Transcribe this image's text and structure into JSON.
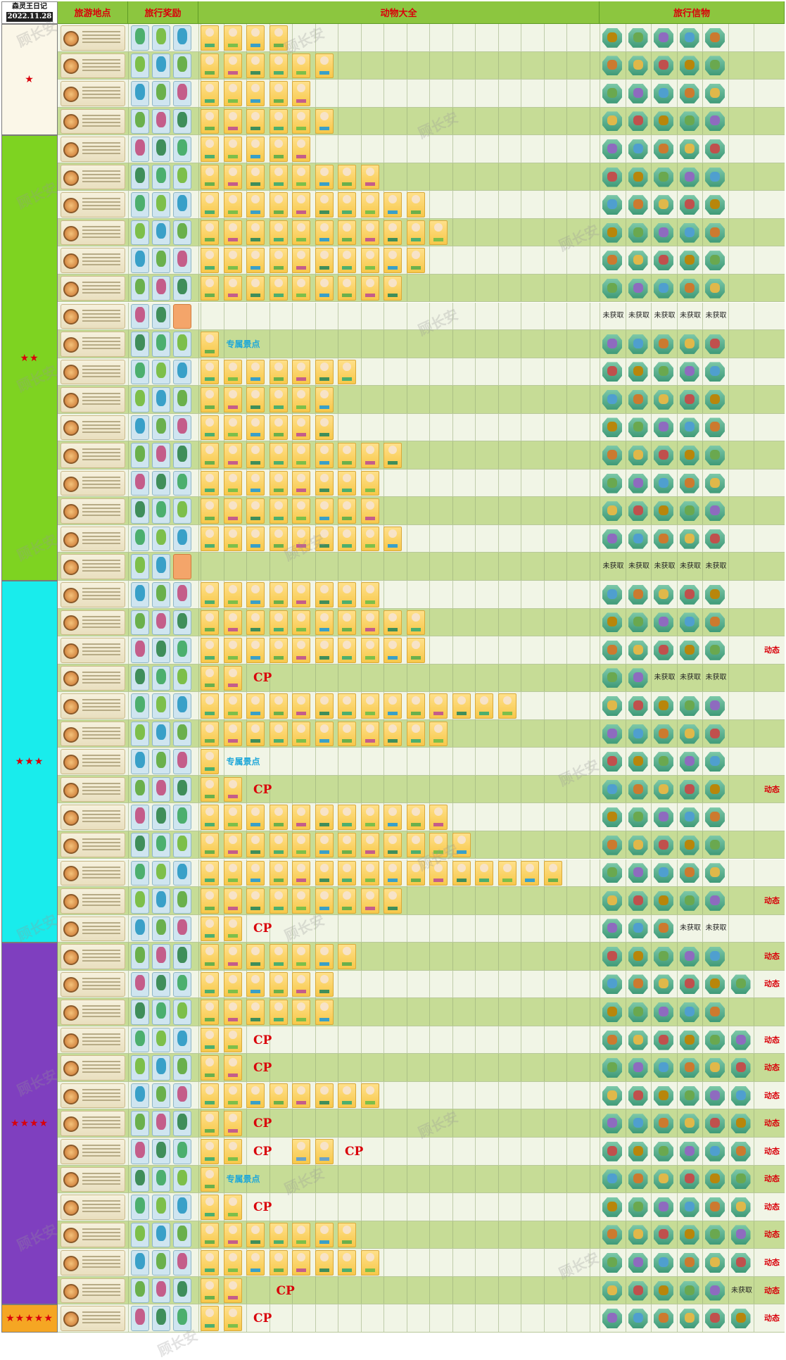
{
  "title_block": {
    "title": "森灵王日记",
    "date": "2022.11.28"
  },
  "headers": {
    "location": "旅游地点",
    "reward": "旅行奖励",
    "animals": "动物大全",
    "gifts": "旅行信物"
  },
  "labels": {
    "cp": "CP",
    "special": "专属景点",
    "unobtained": "未获取",
    "dynamic": "动态"
  },
  "watermark": "顾长安",
  "colors": {
    "tier1": "#fbf7e8",
    "tier2": "#7ed321",
    "tier3": "#19ecec",
    "tier4": "#7f3fbf",
    "tier5": "#f5a623",
    "accent_red": "#d9000a",
    "header_green": "#8cc63f",
    "special_blue": "#1da7d9"
  },
  "tiers": [
    {
      "stars": "★",
      "rows": 4,
      "color": "#fbf7e8"
    },
    {
      "stars": "★★",
      "rows": 16,
      "color": "#7ed321"
    },
    {
      "stars": "★★★",
      "rows": 13,
      "color": "#19ecec"
    },
    {
      "stars": "★★★★",
      "rows": 13,
      "color": "#7f3fbf"
    },
    {
      "stars": "★★★★★",
      "rows": 1,
      "color": "#f5a623"
    }
  ],
  "rows": [
    {
      "animals": 4,
      "gifts": 5,
      "gift_unobtained": 0,
      "rewards_blank": 0
    },
    {
      "animals": 6,
      "gifts": 5,
      "gift_unobtained": 0,
      "rewards_blank": 0
    },
    {
      "animals": 5,
      "gifts": 5,
      "gift_unobtained": 0,
      "rewards_blank": 0
    },
    {
      "animals": 6,
      "gifts": 5,
      "gift_unobtained": 0,
      "rewards_blank": 0
    },
    {
      "animals": 5,
      "gifts": 5,
      "gift_unobtained": 0,
      "rewards_blank": 0
    },
    {
      "animals": 8,
      "gifts": 5,
      "gift_unobtained": 0,
      "rewards_blank": 0
    },
    {
      "animals": 10,
      "gifts": 5,
      "gift_unobtained": 0,
      "rewards_blank": 0
    },
    {
      "animals": 11,
      "gifts": 5,
      "gift_unobtained": 0,
      "rewards_blank": 0
    },
    {
      "animals": 10,
      "gifts": 5,
      "gift_unobtained": 0,
      "rewards_blank": 0
    },
    {
      "animals": 9,
      "gifts": 5,
      "gift_unobtained": 0,
      "rewards_blank": 0
    },
    {
      "animals": 0,
      "gifts": 0,
      "gift_unobtained": 5,
      "rewards_blank": 1
    },
    {
      "animals": 1,
      "gifts": 5,
      "gift_unobtained": 0,
      "rewards_blank": 0,
      "special": true
    },
    {
      "animals": 7,
      "gifts": 5,
      "gift_unobtained": 0,
      "rewards_blank": 0
    },
    {
      "animals": 6,
      "gifts": 5,
      "gift_unobtained": 0,
      "rewards_blank": 0
    },
    {
      "animals": 6,
      "gifts": 5,
      "gift_unobtained": 0,
      "rewards_blank": 0
    },
    {
      "animals": 9,
      "gifts": 5,
      "gift_unobtained": 0,
      "rewards_blank": 0
    },
    {
      "animals": 8,
      "gifts": 5,
      "gift_unobtained": 0,
      "rewards_blank": 0
    },
    {
      "animals": 8,
      "gifts": 5,
      "gift_unobtained": 0,
      "rewards_blank": 0
    },
    {
      "animals": 9,
      "gifts": 5,
      "gift_unobtained": 0,
      "rewards_blank": 0
    },
    {
      "animals": 0,
      "gifts": 0,
      "gift_unobtained": 5,
      "rewards_blank": 1
    },
    {
      "animals": 8,
      "gifts": 5,
      "gift_unobtained": 0,
      "rewards_blank": 0
    },
    {
      "animals": 10,
      "gifts": 5,
      "gift_unobtained": 0,
      "rewards_blank": 0
    },
    {
      "animals": 10,
      "gifts": 5,
      "gift_unobtained": 0,
      "rewards_blank": 0,
      "dynamic": true
    },
    {
      "animals": 2,
      "gifts": 2,
      "gift_unobtained": 3,
      "rewards_blank": 0,
      "cp": 1
    },
    {
      "animals": 14,
      "gifts": 5,
      "gift_unobtained": 0,
      "rewards_blank": 0
    },
    {
      "animals": 11,
      "gifts": 5,
      "gift_unobtained": 0,
      "rewards_blank": 0
    },
    {
      "animals": 1,
      "gifts": 5,
      "gift_unobtained": 0,
      "rewards_blank": 0,
      "special": true
    },
    {
      "animals": 2,
      "gifts": 5,
      "gift_unobtained": 0,
      "rewards_blank": 0,
      "cp": 1,
      "dynamic": true
    },
    {
      "animals": 11,
      "gifts": 5,
      "gift_unobtained": 0,
      "rewards_blank": 0
    },
    {
      "animals": 12,
      "gifts": 5,
      "gift_unobtained": 0,
      "rewards_blank": 0
    },
    {
      "animals": 16,
      "gifts": 5,
      "gift_unobtained": 0,
      "rewards_blank": 0
    },
    {
      "animals": 9,
      "gifts": 5,
      "gift_unobtained": 0,
      "rewards_blank": 0,
      "dynamic": true
    },
    {
      "animals": 2,
      "gifts": 3,
      "gift_unobtained": 2,
      "rewards_blank": 0,
      "cp": 1
    },
    {
      "animals": 7,
      "gifts": 5,
      "gift_unobtained": 0,
      "rewards_blank": 0,
      "dynamic": true
    },
    {
      "animals": 6,
      "gifts": 6,
      "gift_unobtained": 0,
      "rewards_blank": 0,
      "dynamic": true
    },
    {
      "animals": 6,
      "gifts": 5,
      "gift_unobtained": 0,
      "rewards_blank": 0
    },
    {
      "animals": 2,
      "gifts": 6,
      "gift_unobtained": 0,
      "rewards_blank": 0,
      "cp": 1,
      "dynamic": true
    },
    {
      "animals": 2,
      "gifts": 6,
      "gift_unobtained": 0,
      "rewards_blank": 0,
      "cp": 1,
      "dynamic": true
    },
    {
      "animals": 8,
      "gifts": 6,
      "gift_unobtained": 0,
      "rewards_blank": 0,
      "dynamic": true
    },
    {
      "animals": 2,
      "gifts": 6,
      "gift_unobtained": 0,
      "rewards_blank": 0,
      "cp": 1,
      "dynamic": true
    },
    {
      "animals": 2,
      "gifts": 6,
      "gift_unobtained": 0,
      "rewards_blank": 0,
      "cp": 2,
      "cp_animals": 2,
      "dynamic": true
    },
    {
      "animals": 1,
      "gifts": 6,
      "gift_unobtained": 0,
      "rewards_blank": 0,
      "special": true,
      "dynamic": true
    },
    {
      "animals": 2,
      "gifts": 6,
      "gift_unobtained": 0,
      "rewards_blank": 0,
      "cp": 1,
      "dynamic": true
    },
    {
      "animals": 7,
      "gifts": 6,
      "gift_unobtained": 0,
      "rewards_blank": 0,
      "dynamic": true
    },
    {
      "animals": 8,
      "gifts": 6,
      "gift_unobtained": 0,
      "rewards_blank": 0,
      "dynamic": true
    },
    {
      "animals": 3,
      "gifts": 5,
      "gift_unobtained": 1,
      "rewards_blank": 0,
      "cp": 1,
      "dynamic": true
    },
    {
      "animals": 2,
      "gifts": 6,
      "gift_unobtained": 0,
      "rewards_blank": 0,
      "cp": 1,
      "dynamic": true
    }
  ]
}
